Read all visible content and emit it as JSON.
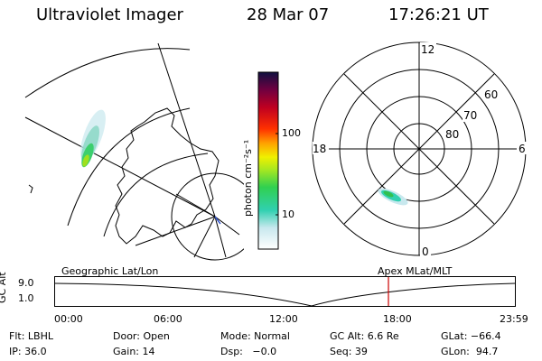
{
  "header": {
    "instrument": "Ultraviolet Imager",
    "date": "28 Mar 07",
    "time": "17:26:21 UT"
  },
  "geo_panel": {
    "label": "Geographic Lat/Lon"
  },
  "colorbar": {
    "unit_label": "photon cm⁻²s⁻¹",
    "ticks": [
      "100",
      "10"
    ]
  },
  "polar_plot": {
    "label": "Apex MLat/MLT",
    "mlt_labels": {
      "top": "12",
      "left": "18",
      "right": "6",
      "bottom": "0"
    },
    "lat_labels": [
      "60",
      "70",
      "80"
    ]
  },
  "altitude_strip": {
    "ylabel": "GC Alt",
    "ytick": "9.0",
    "ytick_low": "1.0",
    "time_ticks": [
      "00:00",
      "06:00",
      "12:00",
      "18:00",
      "23:59"
    ],
    "marker_color": "#cc0000"
  },
  "info": {
    "row1": [
      "Flt: LBHL",
      "Door: Open",
      "Mode: Normal",
      "GC Alt: 6.6 Re",
      "GLat: −66.4"
    ],
    "row2": [
      "IP: 36.0",
      "Gain: 14",
      "Dsp:   −0.0",
      "Seq: 39",
      "GLon:  94.7"
    ]
  }
}
